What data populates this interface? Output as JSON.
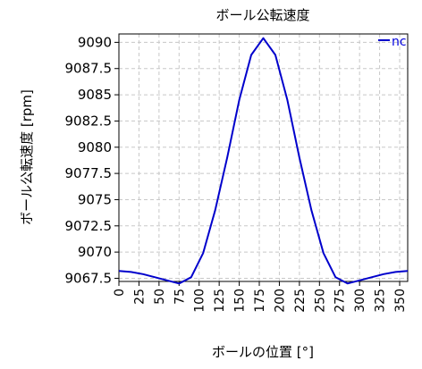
{
  "chart_data": {
    "type": "line",
    "title": "ボール公転速度",
    "xlabel": "ボールの位置 [°]",
    "ylabel": "ボール公転速度 [rpm]",
    "xlim": [
      0,
      360
    ],
    "ylim": [
      9067.2,
      9090.8
    ],
    "grid": true,
    "legend_position": "top-right",
    "x_ticks": [
      0,
      25,
      50,
      75,
      100,
      125,
      150,
      175,
      200,
      225,
      250,
      275,
      300,
      325,
      350
    ],
    "y_ticks": [
      9067.5,
      9070,
      9072.5,
      9075,
      9077.5,
      9080,
      9082.5,
      9085,
      9087.5,
      9090
    ],
    "x_tick_labels": [
      "0",
      "25",
      "50",
      "75",
      "100",
      "125",
      "150",
      "175",
      "200",
      "225",
      "250",
      "275",
      "300",
      "325",
      "350"
    ],
    "y_tick_labels": [
      "9067.5",
      "9070",
      "9072.5",
      "9075",
      "9077.5",
      "9080",
      "9082.5",
      "9085",
      "9087.5",
      "9090"
    ],
    "series": [
      {
        "name": "nc",
        "color": "#0000cc",
        "x": [
          0,
          15,
          30,
          45,
          60,
          75,
          90,
          105,
          120,
          135,
          150,
          165,
          180,
          195,
          210,
          225,
          240,
          255,
          270,
          285,
          300,
          315,
          330,
          345,
          360
        ],
        "y": [
          9068.2,
          9068.1,
          9067.9,
          9067.6,
          9067.3,
          9067.0,
          9067.6,
          9069.9,
          9074.0,
          9079.0,
          9084.5,
          9088.8,
          9090.4,
          9088.8,
          9084.5,
          9079.0,
          9074.0,
          9069.9,
          9067.6,
          9067.0,
          9067.3,
          9067.6,
          9067.9,
          9068.1,
          9068.2
        ]
      }
    ]
  }
}
